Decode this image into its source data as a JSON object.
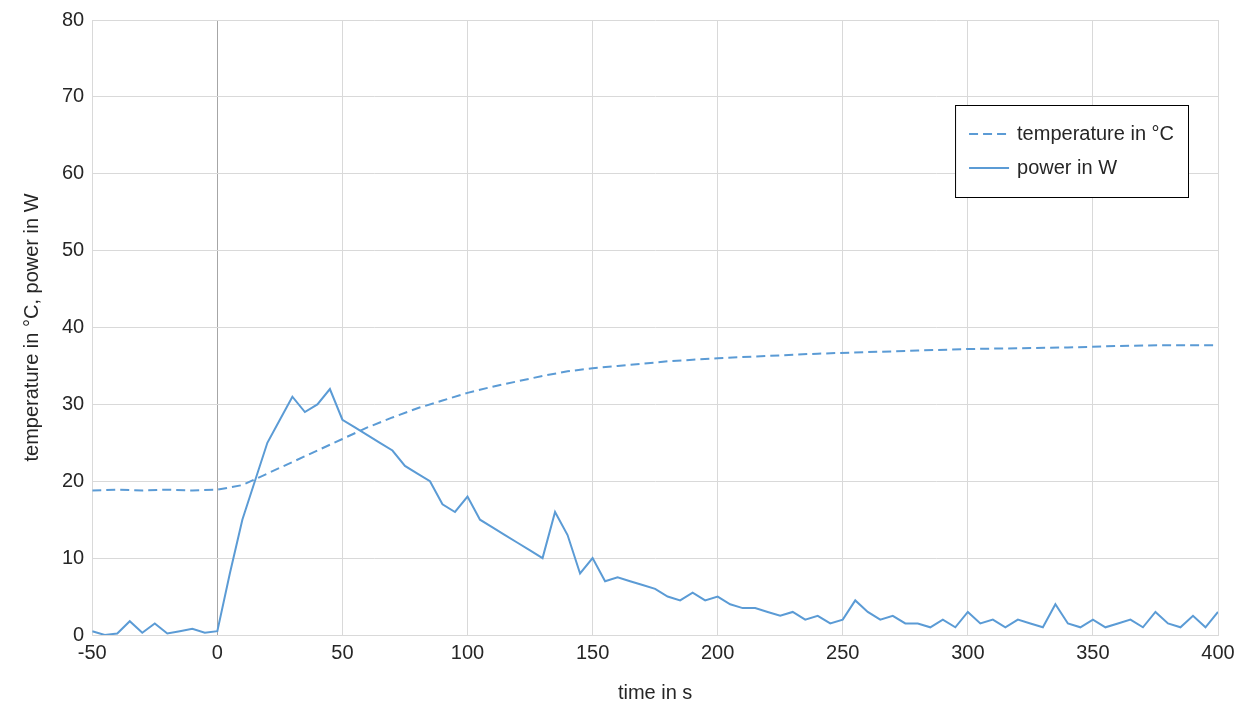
{
  "chart_data": {
    "type": "line",
    "x_label": "time in s",
    "y_label": "temperature in °C, power in W",
    "xlim": [
      -50,
      400
    ],
    "xticks": [
      -50,
      0,
      50,
      100,
      150,
      200,
      250,
      300,
      350,
      400
    ],
    "ylim": [
      0,
      80
    ],
    "yticks": [
      0,
      10,
      20,
      30,
      40,
      50,
      60,
      70,
      80
    ],
    "grid": true,
    "legend": "upper right",
    "series": [
      {
        "name": "temperature in °C",
        "color": "#5b9bd5",
        "line_style": "dashed",
        "marker": "none",
        "x": [
          -50,
          -40,
          -30,
          -20,
          -10,
          0,
          10,
          20,
          30,
          40,
          50,
          60,
          70,
          80,
          90,
          100,
          110,
          120,
          130,
          140,
          150,
          160,
          170,
          180,
          190,
          200,
          220,
          240,
          260,
          280,
          300,
          320,
          340,
          360,
          380,
          400
        ],
        "values": [
          18.8,
          18.9,
          18.8,
          18.9,
          18.8,
          18.9,
          19.5,
          21,
          22.5,
          24,
          25.5,
          27,
          28.3,
          29.5,
          30.5,
          31.5,
          32.3,
          33,
          33.7,
          34.3,
          34.7,
          35,
          35.3,
          35.6,
          35.8,
          36,
          36.3,
          36.6,
          36.8,
          37,
          37.2,
          37.3,
          37.4,
          37.6,
          37.7,
          37.7
        ]
      },
      {
        "name": "power in W",
        "color": "#5b9bd5",
        "line_style": "solid",
        "marker": "none",
        "x": [
          -50,
          -45,
          -40,
          -35,
          -30,
          -25,
          -20,
          -15,
          -10,
          -5,
          0,
          5,
          10,
          15,
          20,
          25,
          30,
          35,
          40,
          45,
          50,
          55,
          60,
          65,
          70,
          75,
          80,
          85,
          90,
          95,
          100,
          105,
          110,
          115,
          120,
          125,
          130,
          135,
          140,
          145,
          150,
          155,
          160,
          165,
          170,
          175,
          180,
          185,
          190,
          195,
          200,
          205,
          210,
          215,
          220,
          225,
          230,
          235,
          240,
          245,
          250,
          255,
          260,
          265,
          270,
          275,
          280,
          285,
          290,
          295,
          300,
          305,
          310,
          315,
          320,
          325,
          330,
          335,
          340,
          345,
          350,
          355,
          360,
          365,
          370,
          375,
          380,
          385,
          390,
          395,
          400
        ],
        "values": [
          0.5,
          0,
          0.2,
          1.8,
          0.3,
          1.5,
          0.2,
          0.5,
          0.8,
          0.3,
          0.5,
          8,
          15,
          20,
          25,
          28,
          31,
          29,
          30,
          32,
          28,
          27,
          26,
          25,
          24,
          22,
          21,
          20,
          17,
          16,
          18,
          15,
          14,
          13,
          12,
          11,
          10,
          16,
          13,
          8,
          10,
          7,
          7.5,
          7,
          6.5,
          6,
          5,
          4.5,
          5.5,
          4.5,
          5,
          4,
          3.5,
          3.5,
          3,
          2.5,
          3,
          2,
          2.5,
          1.5,
          2,
          4.5,
          3,
          2,
          2.5,
          1.5,
          1.5,
          1,
          2,
          1,
          3,
          1.5,
          2,
          1,
          2,
          1.5,
          1,
          4,
          1.5,
          1,
          2,
          1,
          1.5,
          2,
          1,
          3,
          1.5,
          1,
          2.5,
          1,
          3
        ]
      }
    ]
  }
}
